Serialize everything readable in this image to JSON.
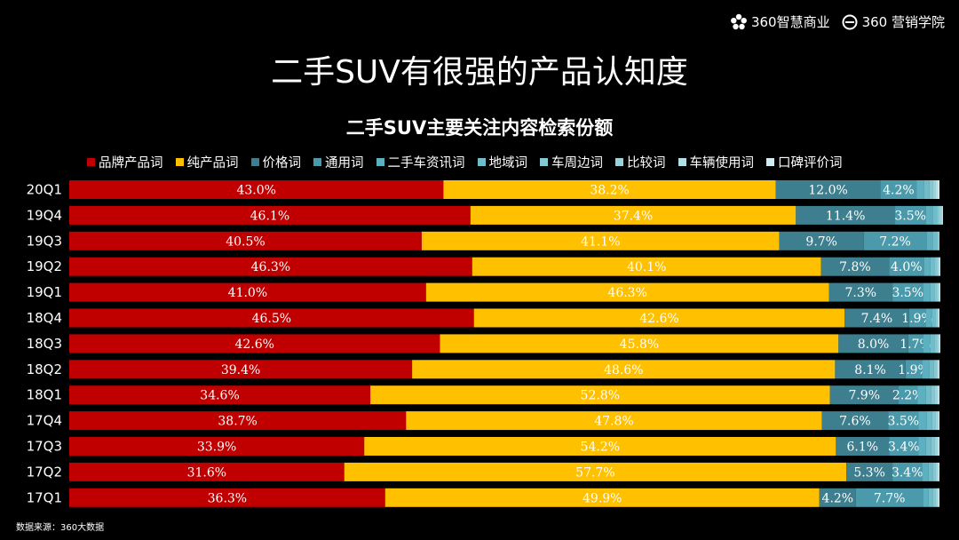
{
  "header": {
    "logo_1": "360智慧商业",
    "logo_2": "360 营销学院",
    "logo_1_icon": "flower-icon",
    "logo_2_icon": "ring-icon"
  },
  "page_title": "二手SUV有很强的产品认知度",
  "source_note": "数据来源：360大数据",
  "chart_data": {
    "type": "bar",
    "orientation": "horizontal",
    "stacked": true,
    "title": "二手SUV主要关注内容检索份额",
    "xlabel": "",
    "ylabel": "",
    "xlim": [
      0,
      100
    ],
    "grid": false,
    "legend_position": "top",
    "categories": [
      "20Q1",
      "19Q4",
      "19Q3",
      "19Q2",
      "19Q1",
      "18Q4",
      "18Q3",
      "18Q2",
      "18Q1",
      "17Q4",
      "17Q3",
      "17Q2",
      "17Q1"
    ],
    "series": [
      {
        "name": "品牌产品词",
        "color": "#c00000",
        "values": [
          43.0,
          46.1,
          40.5,
          46.3,
          41.0,
          46.5,
          42.6,
          39.4,
          34.6,
          38.7,
          33.9,
          31.6,
          36.3
        ]
      },
      {
        "name": "纯产品词",
        "color": "#ffc000",
        "values": [
          38.2,
          37.4,
          41.1,
          40.1,
          46.3,
          42.6,
          45.8,
          48.6,
          52.8,
          47.8,
          54.2,
          57.7,
          49.9
        ]
      },
      {
        "name": "价格词",
        "color": "#3e7f8f",
        "values": [
          12.0,
          11.4,
          9.7,
          7.8,
          7.3,
          7.4,
          8.0,
          8.1,
          7.9,
          7.6,
          6.1,
          5.3,
          4.2
        ]
      },
      {
        "name": "通用词",
        "color": "#4a9aab",
        "values": [
          4.2,
          3.5,
          7.2,
          4.0,
          3.5,
          1.9,
          1.7,
          1.9,
          2.2,
          3.5,
          3.4,
          3.4,
          7.7
        ]
      },
      {
        "name": "二手车资讯词",
        "color": "#5cb0bf",
        "values": [
          0.8,
          0.8,
          0.7,
          0.7,
          0.8,
          0.7,
          0.8,
          0.8,
          0.9,
          0.9,
          0.8,
          0.7,
          0.6
        ]
      },
      {
        "name": "地域词",
        "color": "#6fbdca",
        "values": [
          0.6,
          0.5,
          0.5,
          0.5,
          0.5,
          0.4,
          0.5,
          0.5,
          0.6,
          0.6,
          0.6,
          0.5,
          0.5
        ]
      },
      {
        "name": "车周边词",
        "color": "#83c8d3",
        "values": [
          0.4,
          0.3,
          0.2,
          0.3,
          0.3,
          0.2,
          0.3,
          0.3,
          0.4,
          0.4,
          0.4,
          0.3,
          0.3
        ]
      },
      {
        "name": "比较词",
        "color": "#99d3dc",
        "values": [
          0.3,
          0.2,
          0.1,
          0.2,
          0.2,
          0.1,
          0.2,
          0.2,
          0.3,
          0.3,
          0.3,
          0.2,
          0.2
        ]
      },
      {
        "name": "车辆使用词",
        "color": "#b2dfe6",
        "values": [
          0.3,
          0.1,
          0.0,
          0.1,
          0.1,
          0.1,
          0.1,
          0.1,
          0.2,
          0.1,
          0.2,
          0.2,
          0.2
        ]
      },
      {
        "name": "口碑评价词",
        "color": "#d2edf1",
        "values": [
          0.2,
          0.1,
          0.0,
          0.1,
          0.1,
          0.1,
          0.1,
          0.1,
          0.1,
          0.1,
          0.1,
          0.1,
          0.1
        ]
      }
    ],
    "labeled_series": [
      "品牌产品词",
      "纯产品词",
      "价格词",
      "通用词"
    ]
  }
}
